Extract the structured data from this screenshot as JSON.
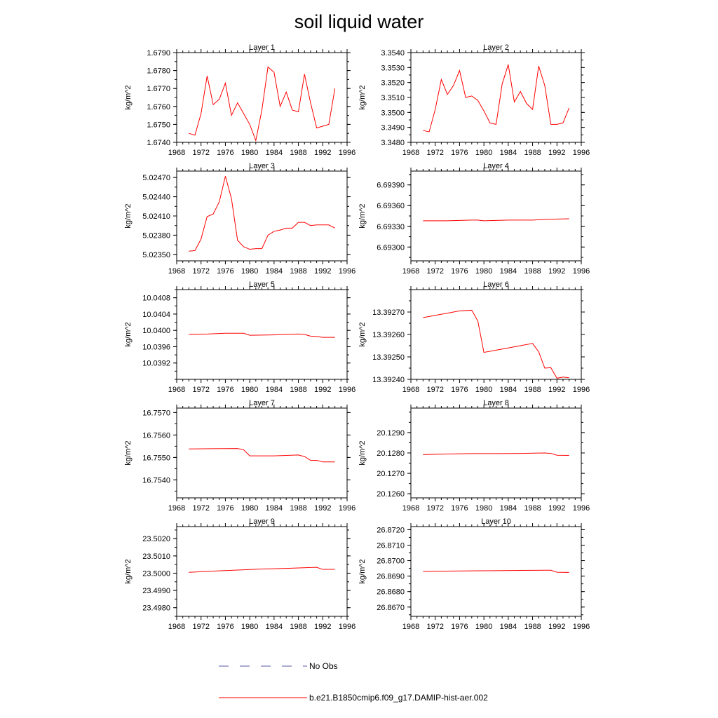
{
  "title": "soil liquid water",
  "xticks": [
    1968,
    1972,
    1976,
    1980,
    1984,
    1988,
    1992,
    1996
  ],
  "xlim": [
    1968,
    1996
  ],
  "colors": {
    "model": "#ff0000",
    "obs": "#5a5aa0"
  },
  "legend": {
    "placement": "bottom-center",
    "items": [
      {
        "label": "No Obs",
        "style": "dashed",
        "color": "#5a5aa0"
      },
      {
        "label": "b.e21.B1850cmip6.f09_g17.DAMIP-hist-aer.002",
        "style": "solid",
        "color": "#ff0000"
      }
    ]
  },
  "chart_data": [
    {
      "type": "line",
      "title": "Layer 1",
      "ylabel": "kg/m^2",
      "ylim": [
        1.674,
        1.679
      ],
      "decimals": 4,
      "yticks": [
        1.674,
        1.675,
        1.676,
        1.677,
        1.678,
        1.679
      ],
      "x": [
        1970,
        1971,
        1972,
        1973,
        1974,
        1975,
        1976,
        1977,
        1978,
        1979,
        1980,
        1981,
        1982,
        1983,
        1984,
        1985,
        1986,
        1987,
        1988,
        1989,
        1990,
        1991,
        1992,
        1993,
        1994
      ],
      "y": [
        1.6745,
        1.6744,
        1.6756,
        1.6777,
        1.6761,
        1.6764,
        1.6773,
        1.6755,
        1.6762,
        1.6756,
        1.675,
        1.6741,
        1.6758,
        1.6782,
        1.6779,
        1.676,
        1.6768,
        1.6758,
        1.6757,
        1.6778,
        1.6762,
        1.6748,
        1.6749,
        1.675,
        1.677
      ]
    },
    {
      "type": "line",
      "title": "Layer 2",
      "ylabel": "kg/m^2",
      "ylim": [
        3.348,
        3.354
      ],
      "decimals": 4,
      "yticks": [
        3.348,
        3.349,
        3.35,
        3.351,
        3.352,
        3.353,
        3.354
      ],
      "x": [
        1970,
        1971,
        1972,
        1973,
        1974,
        1975,
        1976,
        1977,
        1978,
        1979,
        1980,
        1981,
        1982,
        1983,
        1984,
        1985,
        1986,
        1987,
        1988,
        1989,
        1990,
        1991,
        1992,
        1993,
        1994
      ],
      "y": [
        3.3488,
        3.3487,
        3.3502,
        3.3522,
        3.3512,
        3.3518,
        3.3528,
        3.351,
        3.3511,
        3.3508,
        3.3501,
        3.3493,
        3.3492,
        3.3519,
        3.3532,
        3.3507,
        3.3514,
        3.3506,
        3.3502,
        3.3531,
        3.3518,
        3.3492,
        3.3492,
        3.3493,
        3.3503
      ]
    },
    {
      "type": "line",
      "title": "Layer 3",
      "ylabel": "kg/m^2",
      "ylim": [
        5.0234,
        5.0248
      ],
      "decimals": 5,
      "yticks": [
        5.0235,
        5.0238,
        5.0241,
        5.0244,
        5.0247
      ],
      "x": [
        1970,
        1971,
        1972,
        1973,
        1974,
        1975,
        1976,
        1977,
        1978,
        1979,
        1980,
        1981,
        1982,
        1983,
        1984,
        1985,
        1986,
        1987,
        1988,
        1989,
        1990,
        1991,
        1992,
        1993,
        1994
      ],
      "y": [
        5.02355,
        5.02356,
        5.02374,
        5.02409,
        5.02413,
        5.02432,
        5.02472,
        5.02437,
        5.02372,
        5.02362,
        5.02358,
        5.02359,
        5.02359,
        5.0238,
        5.02386,
        5.02388,
        5.02391,
        5.02391,
        5.024,
        5.024,
        5.02395,
        5.02396,
        5.02396,
        5.02396,
        5.02391
      ]
    },
    {
      "type": "line",
      "title": "Layer 4",
      "ylabel": "kg/m^2",
      "ylim": [
        6.6928,
        6.6941
      ],
      "decimals": 5,
      "yticks": [
        6.693,
        6.6933,
        6.6936,
        6.6939
      ],
      "x": [
        1970,
        1974,
        1978,
        1979,
        1980,
        1984,
        1988,
        1990,
        1994
      ],
      "y": [
        6.69338,
        6.69338,
        6.69339,
        6.69339,
        6.69338,
        6.69339,
        6.69339,
        6.6934,
        6.69341
      ]
    },
    {
      "type": "line",
      "title": "Layer 5",
      "ylabel": "kg/m^2",
      "ylim": [
        10.0388,
        10.041
      ],
      "decimals": 4,
      "yticks": [
        10.0392,
        10.0396,
        10.04,
        10.0404,
        10.0408
      ],
      "x": [
        1970,
        1973,
        1976,
        1979,
        1980,
        1984,
        1988,
        1989,
        1990,
        1991,
        1992,
        1994
      ],
      "y": [
        10.0399,
        10.03991,
        10.03993,
        10.03993,
        10.03988,
        10.03989,
        10.03991,
        10.0399,
        10.03986,
        10.03985,
        10.03983,
        10.03983
      ]
    },
    {
      "type": "line",
      "title": "Layer 6",
      "ylabel": "kg/m^2",
      "ylim": [
        13.3924,
        13.3928
      ],
      "decimals": 5,
      "yticks": [
        13.3924,
        13.3925,
        13.3926,
        13.3927
      ],
      "x": [
        1970,
        1972,
        1974,
        1976,
        1978,
        1979,
        1980,
        1982,
        1984,
        1986,
        1988,
        1989,
        1990,
        1991,
        1992,
        1993,
        1994
      ],
      "y": [
        13.392675,
        13.392685,
        13.392695,
        13.392705,
        13.392708,
        13.39266,
        13.39252,
        13.39253,
        13.39254,
        13.39255,
        13.39256,
        13.392523,
        13.39245,
        13.392452,
        13.392405,
        13.39241,
        13.392407
      ]
    },
    {
      "type": "line",
      "title": "Layer 7",
      "ylabel": "kg/m^2",
      "ylim": [
        16.7532,
        16.7572
      ],
      "decimals": 4,
      "yticks": [
        16.754,
        16.755,
        16.756,
        16.757
      ],
      "x": [
        1970,
        1974,
        1978,
        1979,
        1980,
        1984,
        1988,
        1989,
        1990,
        1991,
        1992,
        1994
      ],
      "y": [
        16.75538,
        16.75539,
        16.7554,
        16.75534,
        16.75507,
        16.75507,
        16.75511,
        16.75504,
        16.75487,
        16.75487,
        16.7548,
        16.7548
      ]
    },
    {
      "type": "line",
      "title": "Layer 8",
      "ylabel": "kg/m^2",
      "ylim": [
        20.1258,
        20.1302
      ],
      "decimals": 4,
      "yticks": [
        20.126,
        20.127,
        20.128,
        20.129
      ],
      "x": [
        1970,
        1974,
        1978,
        1982,
        1986,
        1990,
        1991,
        1992,
        1994
      ],
      "y": [
        20.12792,
        20.12795,
        20.12797,
        20.12797,
        20.12798,
        20.128,
        20.12798,
        20.12789,
        20.12788
      ]
    },
    {
      "type": "line",
      "title": "Layer 9",
      "ylabel": "kg/m^2",
      "ylim": [
        23.4975,
        23.5027
      ],
      "decimals": 4,
      "yticks": [
        23.498,
        23.499,
        23.5,
        23.501,
        23.502
      ],
      "x": [
        1970,
        1974,
        1978,
        1982,
        1986,
        1990,
        1991,
        1992,
        1994
      ],
      "y": [
        23.50005,
        23.50012,
        23.50018,
        23.50024,
        23.50028,
        23.50033,
        23.50034,
        23.50022,
        23.50022
      ]
    },
    {
      "type": "line",
      "title": "Layer 10",
      "ylabel": "kg/m^2",
      "ylim": [
        26.8664,
        26.8722
      ],
      "decimals": 4,
      "yticks": [
        26.867,
        26.868,
        26.869,
        26.87,
        26.871,
        26.872
      ],
      "x": [
        1970,
        1974,
        1978,
        1982,
        1986,
        1990,
        1991,
        1992,
        1994
      ],
      "y": [
        26.8693,
        26.86932,
        26.86934,
        26.86935,
        26.86937,
        26.86938,
        26.86938,
        26.86925,
        26.86924
      ]
    }
  ]
}
